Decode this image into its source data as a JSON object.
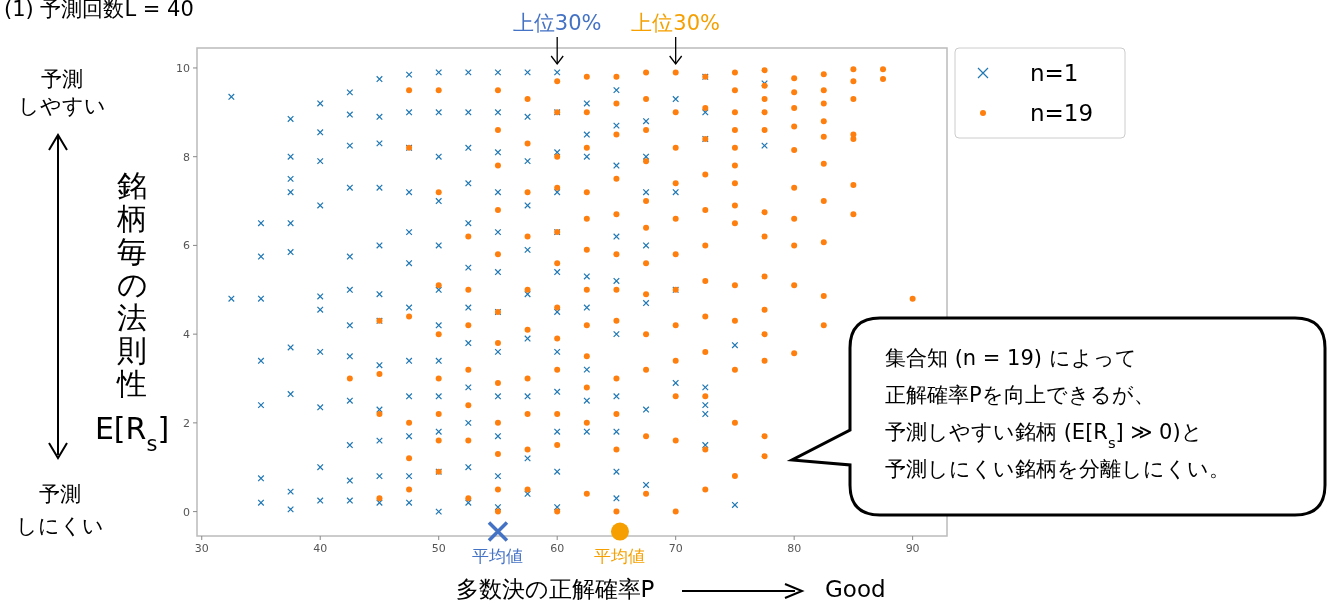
{
  "chart_data": {
    "type": "scatter",
    "title": "(1) 予測回数L = 40",
    "xlabel": "多数決の正解確率P",
    "ylabel": "銘柄毎の法則性E[R$_{s}$]",
    "xlim": [
      29.6,
      92.9
    ],
    "ylim": [
      -0.55,
      10.45
    ],
    "xticks": [
      30,
      40,
      50,
      60,
      70,
      80,
      90
    ],
    "yticks": [
      0,
      2,
      4,
      6,
      8,
      10
    ],
    "grid": false,
    "legend": "top right",
    "series": [
      {
        "name": "n=1",
        "color": "#1f77b4",
        "marker": "cross",
        "x": [
          32.5,
          32.5,
          35,
          35,
          35,
          35,
          35,
          35,
          35,
          37.5,
          37.5,
          37.5,
          37.5,
          37.5,
          37.5,
          37.5,
          37.5,
          37.5,
          37.5,
          40,
          40,
          40,
          40,
          40,
          40,
          40,
          40,
          40,
          40,
          42.5,
          42.5,
          42.5,
          42.5,
          42.5,
          42.5,
          42.5,
          42.5,
          42.5,
          42.5,
          42.5,
          42.5,
          45,
          45,
          45,
          45,
          45,
          45,
          45,
          45,
          45,
          45,
          45,
          45,
          47.5,
          47.5,
          47.5,
          47.5,
          47.5,
          47.5,
          47.5,
          47.5,
          47.5,
          47.5,
          47.5,
          47.5,
          50,
          50,
          50,
          50,
          50,
          50,
          50,
          50,
          50,
          50,
          50,
          50,
          52.5,
          52.5,
          52.5,
          52.5,
          52.5,
          52.5,
          52.5,
          52.5,
          52.5,
          52.5,
          52.5,
          52.5,
          55,
          55,
          55,
          55,
          55,
          55,
          55,
          55,
          55,
          55,
          55,
          55,
          57.5,
          57.5,
          57.5,
          57.5,
          57.5,
          57.5,
          57.5,
          57.5,
          57.5,
          57.5,
          60,
          60,
          60,
          60,
          60,
          60,
          60,
          60,
          60,
          60,
          60,
          60,
          62.5,
          62.5,
          62.5,
          62.5,
          62.5,
          62.5,
          62.5,
          62.5,
          65,
          65,
          65,
          65,
          65,
          65,
          65,
          65,
          65,
          65,
          67.5,
          67.5,
          67.5,
          67.5,
          67.5,
          67.5,
          67.5,
          70,
          70,
          70,
          70,
          72.5,
          72.5,
          72.5,
          72.5,
          72.5,
          72.5,
          72.5,
          75,
          75,
          77.5,
          77.5
        ],
        "values": [
          9.35,
          4.8,
          6.5,
          5.75,
          4.8,
          3.4,
          2.4,
          0.75,
          0.2,
          8.85,
          8.0,
          7.5,
          7.2,
          6.5,
          5.85,
          3.7,
          2.65,
          0.45,
          0.05,
          9.2,
          8.55,
          7.9,
          6.9,
          4.85,
          4.55,
          3.6,
          2.35,
          1.0,
          0.25,
          9.45,
          8.95,
          8.25,
          7.3,
          5.75,
          5.0,
          4.2,
          3.5,
          2.5,
          1.5,
          0.7,
          0.25,
          9.75,
          8.9,
          8.3,
          7.3,
          6.0,
          4.9,
          4.3,
          3.3,
          2.3,
          1.6,
          0.8,
          0.2,
          9.85,
          9.0,
          8.2,
          7.2,
          6.3,
          5.6,
          4.6,
          3.4,
          2.6,
          1.7,
          0.8,
          0.2,
          9.9,
          9.0,
          8.0,
          7.0,
          6.0,
          5.0,
          4.2,
          3.4,
          2.6,
          1.8,
          0.9,
          0.0,
          9.9,
          9.0,
          8.2,
          7.4,
          6.5,
          5.5,
          4.6,
          3.8,
          2.8,
          2.0,
          1.0,
          0.2,
          9.9,
          9.0,
          8.1,
          7.2,
          6.3,
          5.4,
          4.5,
          3.6,
          2.6,
          1.7,
          0.8,
          0.1,
          9.9,
          8.9,
          7.9,
          6.9,
          5.9,
          4.9,
          3.9,
          2.6,
          1.2,
          0.4,
          9.9,
          9.0,
          8.1,
          7.2,
          6.3,
          5.4,
          4.5,
          3.6,
          2.7,
          1.8,
          0.9,
          0.1,
          9.2,
          8.5,
          8.0,
          5.3,
          4.6,
          3.2,
          2.5,
          1.8,
          9.5,
          8.7,
          7.8,
          6.2,
          5.2,
          4.0,
          2.6,
          1.8,
          0.9,
          0.3,
          8.8,
          8.0,
          7.2,
          6.0,
          4.7,
          2.3,
          0.6,
          9.3,
          7.2,
          5.0,
          2.9,
          9.8,
          9.0,
          8.4,
          2.8,
          2.4,
          2.2,
          1.5,
          3.75,
          0.15,
          9.65,
          8.25
        ]
      },
      {
        "name": "n=19",
        "color": "#ff7f0e",
        "marker": "circle",
        "x": [
          42.5,
          45,
          45,
          45,
          45,
          47.5,
          47.5,
          47.5,
          47.5,
          47.5,
          47.5,
          50,
          50,
          50,
          50,
          50,
          50,
          50,
          50,
          52.5,
          52.5,
          52.5,
          52.5,
          52.5,
          52.5,
          52.5,
          55,
          55,
          55,
          55,
          55,
          55,
          55,
          55,
          55,
          55,
          55,
          55,
          57.5,
          57.5,
          57.5,
          57.5,
          57.5,
          57.5,
          57.5,
          57.5,
          57.5,
          57.5,
          60,
          60,
          60,
          60,
          60,
          60,
          60,
          60,
          60,
          60,
          60,
          60,
          62.5,
          62.5,
          62.5,
          62.5,
          62.5,
          62.5,
          62.5,
          62.5,
          62.5,
          62.5,
          62.5,
          62.5,
          65,
          65,
          65,
          65,
          65,
          65,
          65,
          65,
          65,
          65,
          65,
          65,
          67.5,
          67.5,
          67.5,
          67.5,
          67.5,
          67.5,
          67.5,
          67.5,
          67.5,
          67.5,
          67.5,
          67.5,
          70,
          70,
          70,
          70,
          70,
          70,
          70,
          70,
          70,
          70,
          70,
          70,
          72.5,
          72.5,
          72.5,
          72.5,
          72.5,
          72.5,
          72.5,
          72.5,
          72.5,
          72.5,
          72.5,
          72.5,
          75,
          75,
          75,
          75,
          75,
          75,
          75,
          75,
          75,
          75,
          75,
          75,
          75,
          75,
          77.5,
          77.5,
          77.5,
          77.5,
          77.5,
          77.5,
          77.5,
          77.5,
          77.5,
          77.5,
          77.5,
          77.5,
          77.5,
          80,
          80,
          80,
          80,
          80,
          80,
          80,
          80,
          80,
          80,
          82.5,
          82.5,
          82.5,
          82.5,
          82.5,
          82.5,
          82.5,
          82.5,
          82.5,
          82.5,
          85,
          85,
          85,
          85,
          85,
          85,
          85,
          87.5,
          87.5,
          90
        ],
        "values": [
          3.0,
          4.3,
          3.1,
          2.2,
          0.3,
          9.5,
          8.2,
          4.4,
          2.0,
          1.2,
          0.5,
          9.5,
          7.2,
          5.1,
          4.0,
          3.0,
          2.2,
          1.6,
          0.9,
          6.2,
          5.0,
          4.2,
          3.2,
          2.4,
          1.6,
          0.3,
          9.5,
          8.6,
          7.8,
          6.8,
          5.8,
          4.5,
          3.8,
          2.9,
          2.0,
          1.3,
          0.5,
          0.0,
          9.3,
          8.3,
          7.2,
          6.2,
          5.0,
          4.1,
          3.0,
          2.2,
          1.4,
          0.5,
          9.7,
          9.0,
          8.0,
          7.3,
          6.3,
          5.6,
          4.6,
          3.9,
          3.2,
          2.2,
          1.5,
          0.0,
          9.8,
          9.0,
          8.2,
          7.2,
          6.6,
          5.9,
          5.0,
          4.2,
          3.5,
          2.8,
          2.0,
          0.4,
          9.8,
          9.2,
          8.5,
          7.5,
          6.7,
          5.8,
          5.0,
          4.3,
          3.0,
          2.2,
          1.4,
          0.0,
          9.9,
          9.3,
          8.6,
          7.9,
          7.0,
          6.4,
          5.6,
          4.9,
          4.0,
          3.2,
          1.7,
          0.4,
          9.9,
          9.0,
          8.2,
          7.4,
          6.6,
          5.8,
          5.0,
          4.2,
          3.4,
          2.6,
          1.6,
          0.0,
          9.8,
          9.1,
          8.4,
          7.6,
          6.8,
          6.0,
          5.2,
          4.4,
          3.6,
          2.6,
          1.4,
          0.5,
          9.9,
          9.5,
          9.0,
          8.6,
          8.2,
          7.8,
          7.4,
          6.9,
          6.5,
          5.1,
          4.3,
          3.2,
          2.0,
          0.8,
          9.95,
          9.6,
          9.3,
          9.0,
          8.6,
          6.75,
          6.2,
          5.3,
          4.55,
          4.0,
          3.4,
          1.7,
          1.25,
          9.77,
          9.45,
          9.1,
          8.68,
          8.15,
          7.3,
          6.6,
          6.0,
          5.1,
          3.57,
          9.86,
          9.5,
          9.2,
          8.8,
          8.45,
          7.84,
          7.0,
          6.07,
          4.86,
          4.2,
          9.97,
          9.7,
          9.3,
          8.5,
          8.4,
          7.36,
          6.7,
          9.97,
          9.75,
          4.8
        ]
      },
      {
        "color": "#4472c4",
        "marker": "cross",
        "x": [
          55
        ],
        "values": [
          -0.45
        ]
      },
      {
        "color": "#f5a000",
        "marker": "circle",
        "x": [
          65.3
        ],
        "values": [
          -0.45
        ]
      }
    ],
    "annotations": [
      {
        "text": "上位30%",
        "x": 60
      },
      {
        "text": "上位30%",
        "x": 70
      },
      {
        "text": "平均値",
        "x": 55,
        "y": -0.45
      },
      {
        "text": "平均値",
        "x": 65.3,
        "y": -0.45
      },
      "予測",
      "しやすい",
      "予測",
      "しにくい",
      "Good",
      "集合知 (n = 19) によって",
      "正解確率Pを向上できるが、",
      "予測しやすい銘柄 (E[R$_{s}$] ≫ 0)と",
      "予測しにくい銘柄を分離しにくい。"
    ]
  }
}
